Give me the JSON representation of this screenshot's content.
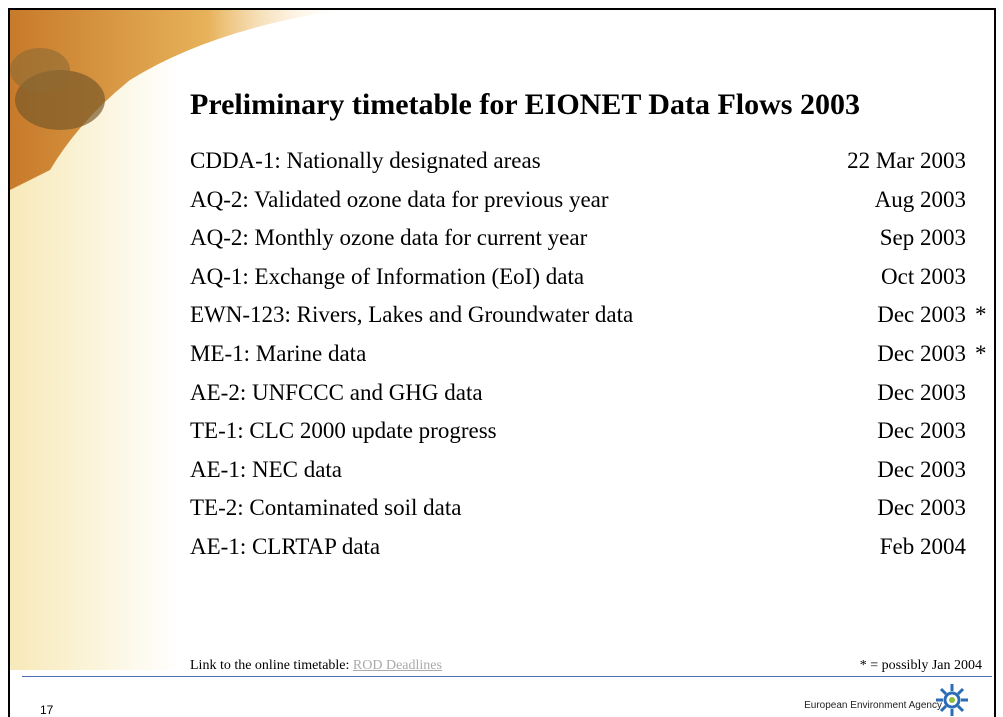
{
  "slide": {
    "title": "Preliminary timetable for EIONET Data Flows 2003",
    "rows": [
      {
        "label": "CDDA-1: Nationally designated areas",
        "date": "22 Mar 2003"
      },
      {
        "label": "AQ-2: Validated ozone data for previous year",
        "date": "Aug 2003"
      },
      {
        "label": "AQ-2: Monthly ozone data for current year",
        "date": "Sep 2003"
      },
      {
        "label": "AQ-1: Exchange of Information (EoI) data",
        "date": "Oct 2003"
      },
      {
        "label": "EWN-123: Rivers, Lakes and Groundwater data",
        "date": "Dec 2003",
        "note": "*"
      },
      {
        "label": "ME-1: Marine data",
        "date": "Dec 2003",
        "note": "*"
      },
      {
        "label": "AE-2: UNFCCC and GHG data",
        "date": "Dec 2003"
      },
      {
        "label": "TE-1: CLC 2000 update progress",
        "date": "Dec 2003"
      },
      {
        "label": "AE-1: NEC data",
        "date": "Dec 2003"
      },
      {
        "label": "TE-2: Contaminated soil data",
        "date": "Dec 2003"
      },
      {
        "label": "AE-1: CLRTAP data",
        "date": "Feb 2004"
      }
    ],
    "footer": {
      "link_prefix": "Link to the online timetable:",
      "link_text": "ROD Deadlines",
      "footnote": "* = possibly Jan 2004"
    },
    "page_number": "17",
    "logo_text": "European Environment Agency"
  }
}
